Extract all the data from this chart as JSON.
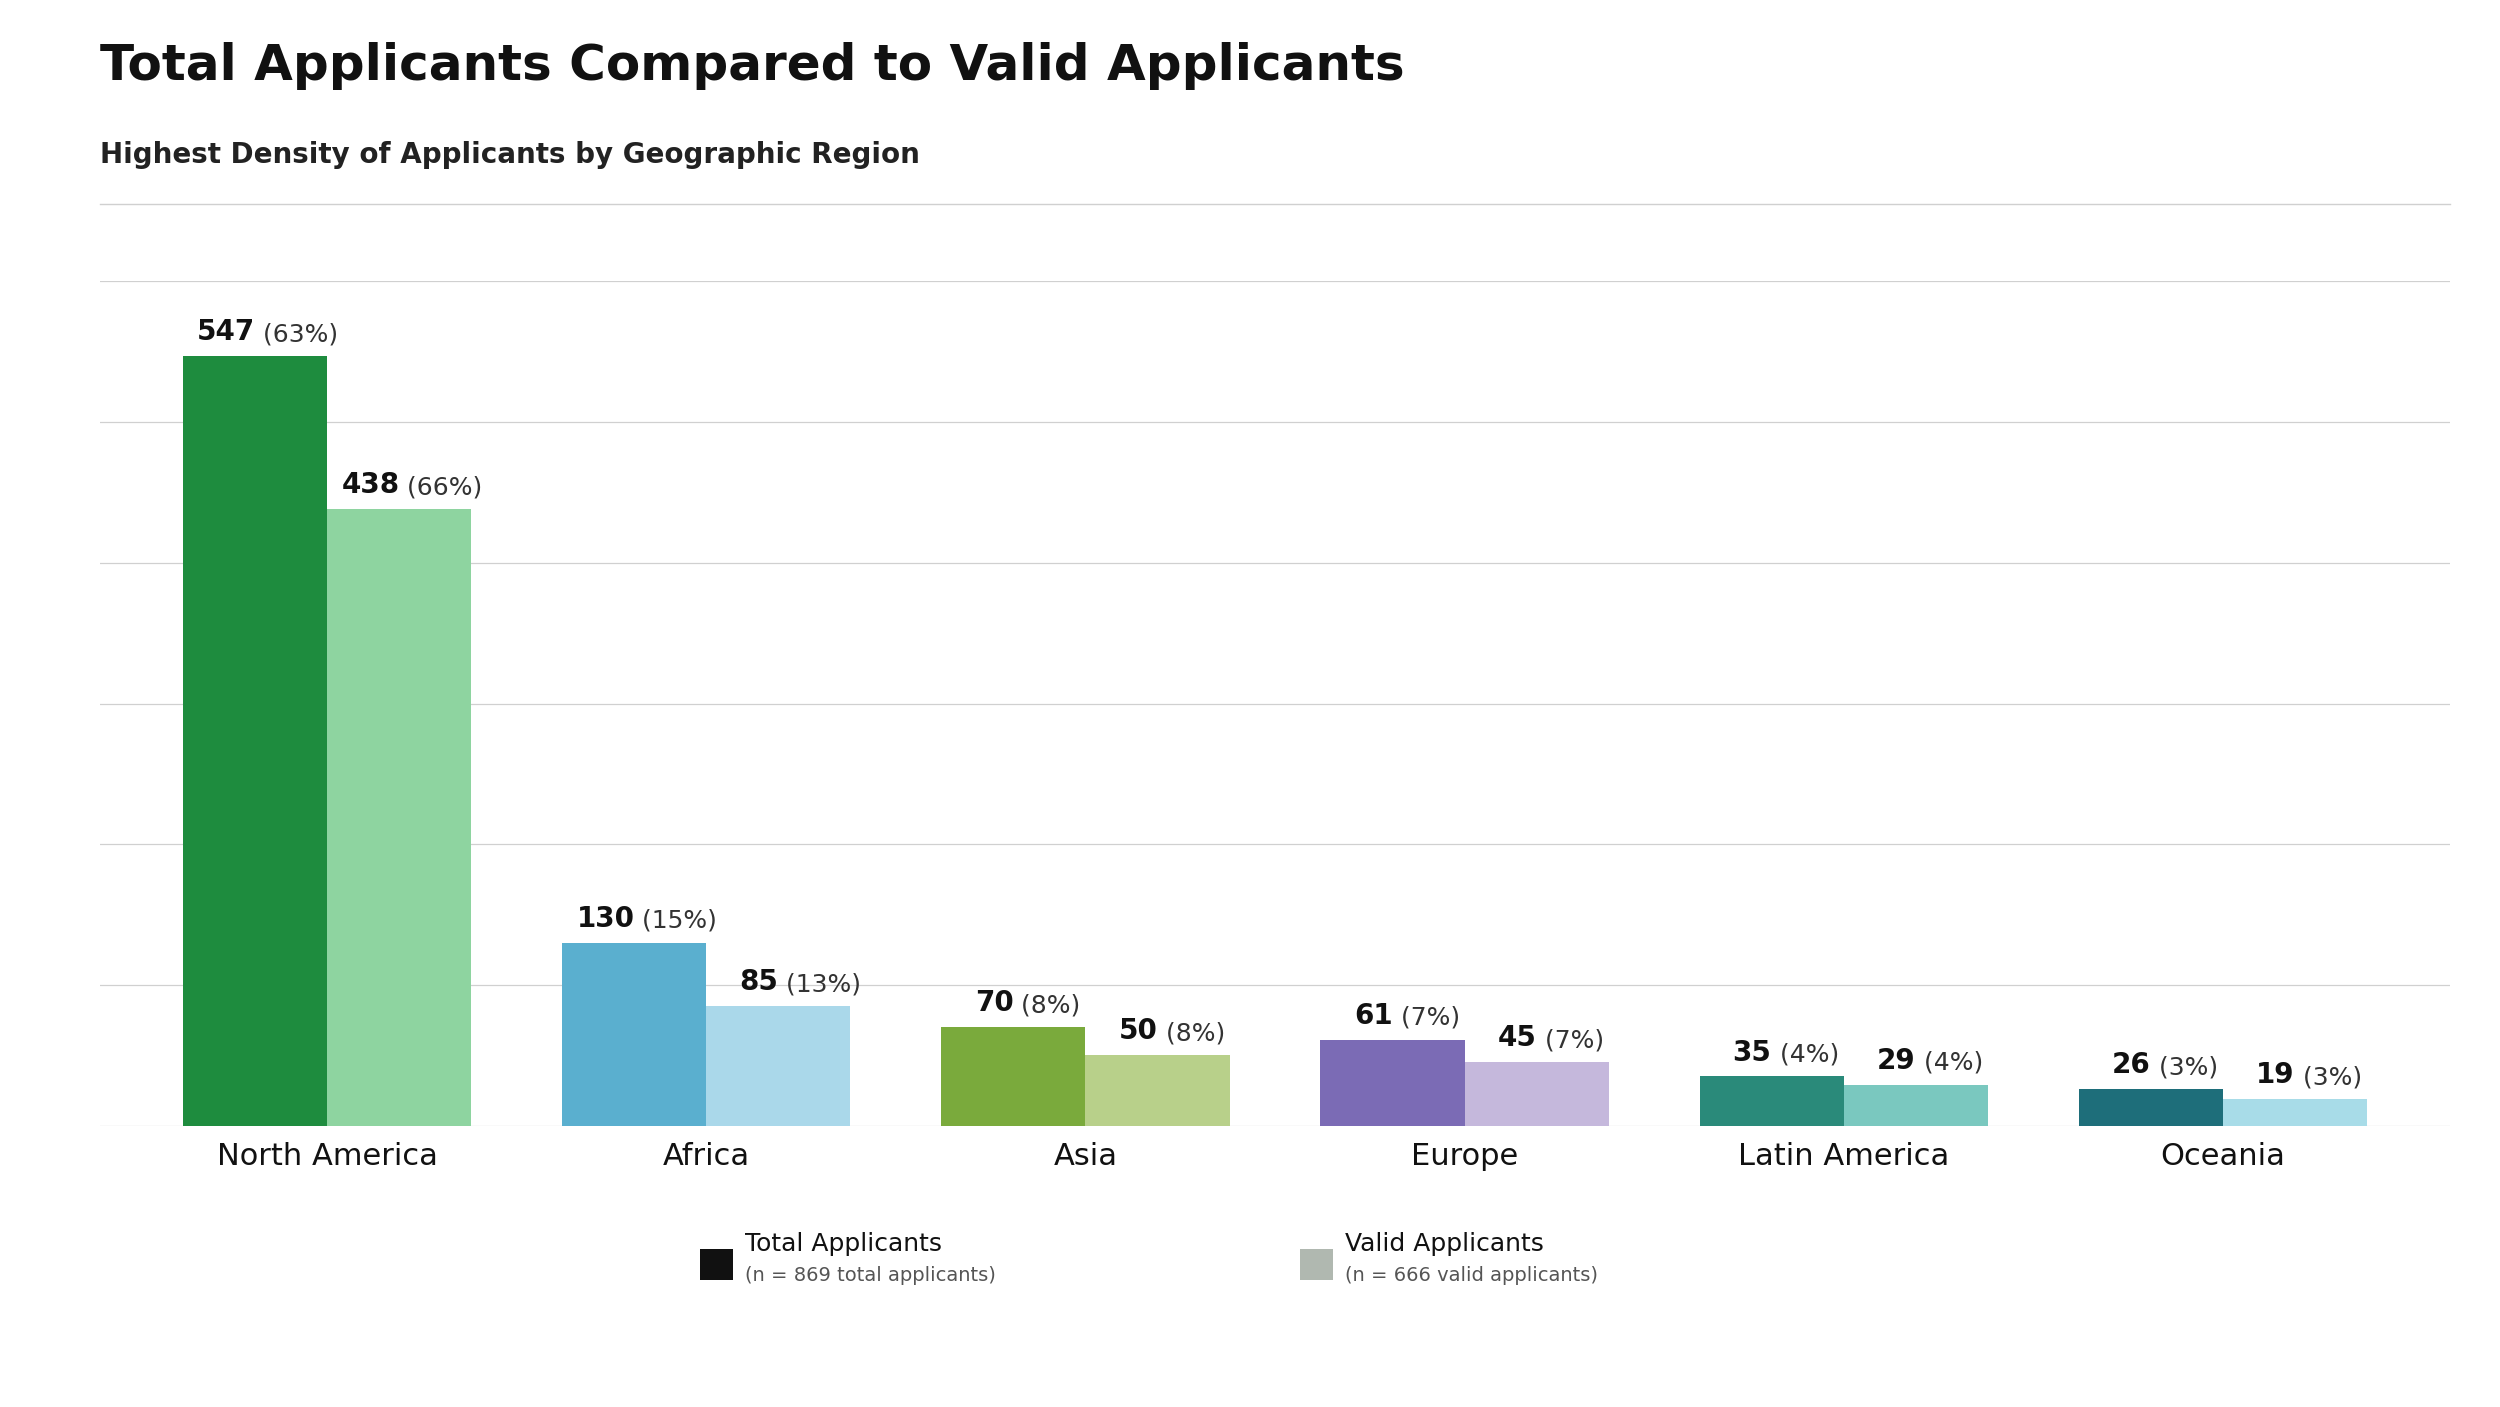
{
  "title": "Total Applicants Compared to Valid Applicants",
  "subtitle": "Highest Density of Applicants by Geographic Region",
  "categories": [
    "North America",
    "Africa",
    "Asia",
    "Europe",
    "Latin America",
    "Oceania"
  ],
  "total_values": [
    547,
    130,
    70,
    61,
    35,
    26
  ],
  "valid_values": [
    438,
    85,
    50,
    45,
    29,
    19
  ],
  "total_pcts": [
    63,
    15,
    8,
    7,
    4,
    3
  ],
  "valid_pcts": [
    66,
    13,
    8,
    7,
    4,
    3
  ],
  "total_colors": [
    "#1e8c3e",
    "#5aafcf",
    "#7aaa3c",
    "#7b6bb5",
    "#2a8a7a",
    "#1e6e7a"
  ],
  "valid_colors": [
    "#8ed4a0",
    "#aad8ea",
    "#b8d08a",
    "#c5b8dc",
    "#7ac8bf",
    "#a8dce8"
  ],
  "background_color": "#ffffff",
  "legend_total_label": "Total Applicants",
  "legend_valid_label": "Valid Applicants",
  "legend_total_n": "(n = 869 total applicants)",
  "legend_valid_n": "(n = 666 valid applicants)",
  "ylim": [
    0,
    600
  ],
  "title_fontsize": 36,
  "subtitle_fontsize": 20,
  "bar_width": 0.38,
  "grid_color": "#d0d0d0",
  "label_fontsize": 20,
  "xtick_fontsize": 22
}
